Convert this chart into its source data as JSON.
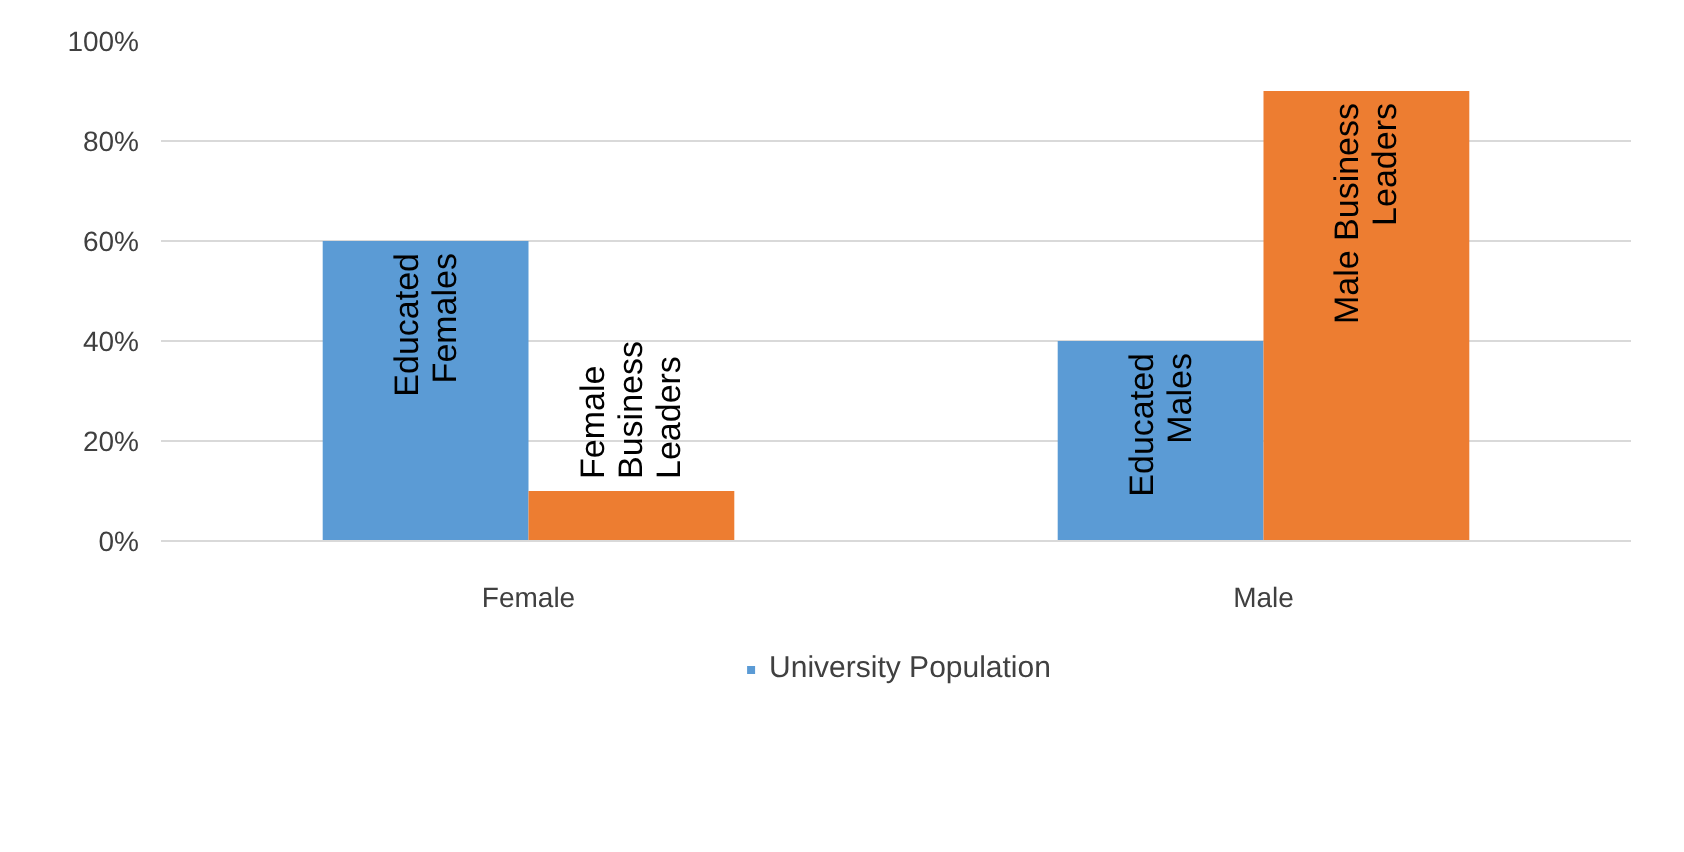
{
  "chart_data": {
    "type": "bar",
    "categories": [
      "Female",
      "Male"
    ],
    "series": [
      {
        "name": "University Population",
        "color": "#5b9bd5",
        "values": [
          60,
          40
        ],
        "value_labels": [
          "Educated\nFemales",
          "Educated\nMales"
        ]
      },
      {
        "color": "#ed7d31",
        "values": [
          10,
          90
        ],
        "value_labels": [
          "Female\nBusiness\nLeaders",
          "Male Business\nLeaders"
        ]
      }
    ],
    "ylim": [
      0,
      100
    ],
    "yticks": [
      {
        "value": 0,
        "label": "0%"
      },
      {
        "value": 20,
        "label": "20%"
      },
      {
        "value": 40,
        "label": "40%"
      },
      {
        "value": 60,
        "label": "60%"
      },
      {
        "value": 80,
        "label": "80%"
      },
      {
        "value": 100,
        "label": "100%"
      }
    ],
    "grid": "y",
    "legend": "bottom"
  }
}
